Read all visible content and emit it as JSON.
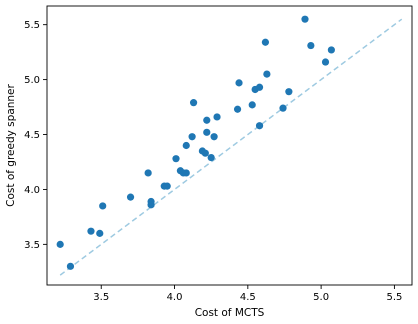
{
  "chart_data": {
    "type": "scatter",
    "title": "",
    "xlabel": "Cost of MCTS",
    "ylabel": "Cost of greedy spanner",
    "xlim": [
      3.13,
      5.62
    ],
    "ylim": [
      3.13,
      5.67
    ],
    "xticks": [
      3.5,
      4.0,
      4.5,
      5.0,
      5.5
    ],
    "yticks": [
      3.5,
      4.0,
      4.5,
      5.0,
      5.5
    ],
    "xtick_labels": [
      "3.5",
      "4.0",
      "4.5",
      "5.0",
      "5.5"
    ],
    "ytick_labels": [
      "3.5",
      "4.0",
      "4.5",
      "5.0",
      "5.5"
    ],
    "grid": false,
    "marker_color": "#1f77b4",
    "reference_line": {
      "style": "dashed",
      "color": "#9ecae1",
      "from": [
        3.22,
        3.22
      ],
      "to": [
        5.55,
        5.55
      ]
    },
    "points": [
      {
        "x": 3.22,
        "y": 3.5
      },
      {
        "x": 3.29,
        "y": 3.3
      },
      {
        "x": 3.43,
        "y": 3.62
      },
      {
        "x": 3.49,
        "y": 3.6
      },
      {
        "x": 3.51,
        "y": 3.85
      },
      {
        "x": 3.7,
        "y": 3.93
      },
      {
        "x": 3.82,
        "y": 4.15
      },
      {
        "x": 3.84,
        "y": 3.89
      },
      {
        "x": 3.84,
        "y": 3.86
      },
      {
        "x": 3.93,
        "y": 4.03
      },
      {
        "x": 3.95,
        "y": 4.03
      },
      {
        "x": 4.01,
        "y": 4.28
      },
      {
        "x": 4.04,
        "y": 4.17
      },
      {
        "x": 4.06,
        "y": 4.15
      },
      {
        "x": 4.08,
        "y": 4.15
      },
      {
        "x": 4.08,
        "y": 4.4
      },
      {
        "x": 4.12,
        "y": 4.48
      },
      {
        "x": 4.13,
        "y": 4.79
      },
      {
        "x": 4.19,
        "y": 4.35
      },
      {
        "x": 4.21,
        "y": 4.33
      },
      {
        "x": 4.22,
        "y": 4.63
      },
      {
        "x": 4.22,
        "y": 4.52
      },
      {
        "x": 4.25,
        "y": 4.29
      },
      {
        "x": 4.27,
        "y": 4.48
      },
      {
        "x": 4.29,
        "y": 4.66
      },
      {
        "x": 4.43,
        "y": 4.73
      },
      {
        "x": 4.44,
        "y": 4.97
      },
      {
        "x": 4.53,
        "y": 4.77
      },
      {
        "x": 4.55,
        "y": 4.91
      },
      {
        "x": 4.58,
        "y": 4.93
      },
      {
        "x": 4.58,
        "y": 4.58
      },
      {
        "x": 4.62,
        "y": 5.34
      },
      {
        "x": 4.63,
        "y": 5.05
      },
      {
        "x": 4.74,
        "y": 4.74
      },
      {
        "x": 4.78,
        "y": 4.89
      },
      {
        "x": 4.89,
        "y": 5.55
      },
      {
        "x": 4.93,
        "y": 5.31
      },
      {
        "x": 5.03,
        "y": 5.16
      },
      {
        "x": 5.07,
        "y": 5.27
      }
    ]
  }
}
